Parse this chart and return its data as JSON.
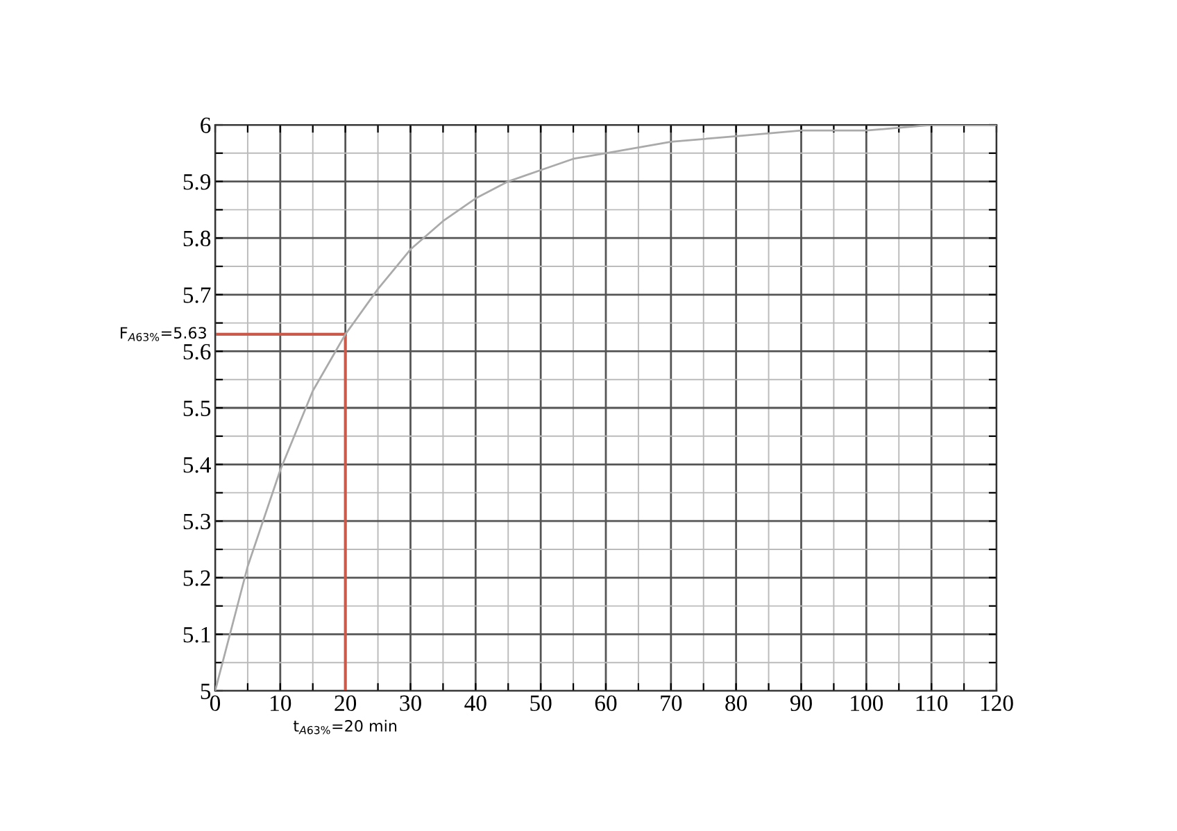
{
  "chart_data": {
    "type": "line",
    "x": [
      0,
      5,
      10,
      15,
      20,
      25,
      30,
      35,
      40,
      45,
      50,
      55,
      60,
      70,
      80,
      90,
      100,
      110,
      120
    ],
    "series": [
      {
        "color": "#aaaaaa",
        "values": [
          5.0,
          5.22,
          5.39,
          5.53,
          5.63,
          5.71,
          5.78,
          5.83,
          5.87,
          5.9,
          5.92,
          5.94,
          5.95,
          5.97,
          5.98,
          5.99,
          5.99,
          6.0,
          6.0
        ]
      }
    ],
    "xlim": [
      0,
      120
    ],
    "xticks": [
      0,
      {
        "value": 5,
        "label": null
      },
      10,
      {
        "value": 15,
        "label": null
      },
      20,
      {
        "value": 25,
        "label": null
      },
      30,
      {
        "value": 35,
        "label": null
      },
      40,
      {
        "value": 45,
        "label": null
      },
      50,
      {
        "value": 55,
        "label": null
      },
      60,
      {
        "value": 65,
        "label": null
      },
      70,
      {
        "value": 75,
        "label": null
      },
      80,
      {
        "value": 85,
        "label": null
      },
      90,
      {
        "value": 95,
        "label": null
      },
      100,
      {
        "value": 105,
        "label": null
      },
      110,
      {
        "value": 115,
        "label": null
      },
      120
    ],
    "ylim": [
      5,
      6
    ],
    "yticks": [
      5,
      {
        "value": 5.05,
        "label": null
      },
      5.1,
      {
        "value": 5.15,
        "label": null
      },
      5.2,
      {
        "value": 5.25,
        "label": null
      },
      5.3,
      {
        "value": 5.35,
        "label": null
      },
      5.4,
      {
        "value": 5.45,
        "label": null
      },
      5.5,
      {
        "value": 5.55,
        "label": null
      },
      5.6,
      {
        "value": 5.65,
        "label": null
      },
      5.7,
      {
        "value": 5.75,
        "label": null
      },
      5.8,
      {
        "value": 5.85,
        "label": null
      },
      5.9,
      {
        "value": 5.95,
        "label": null
      },
      6
    ],
    "grid": true,
    "ref_lines": [
      {
        "axis": "x",
        "value": 20,
        "label": "t$_{A63%}$=20 min",
        "color": "#cc5a4a"
      },
      {
        "axis": "y",
        "value": 5.63,
        "label": "F$_{A63%}$=5.63",
        "color": "#cc5a4a"
      }
    ]
  }
}
